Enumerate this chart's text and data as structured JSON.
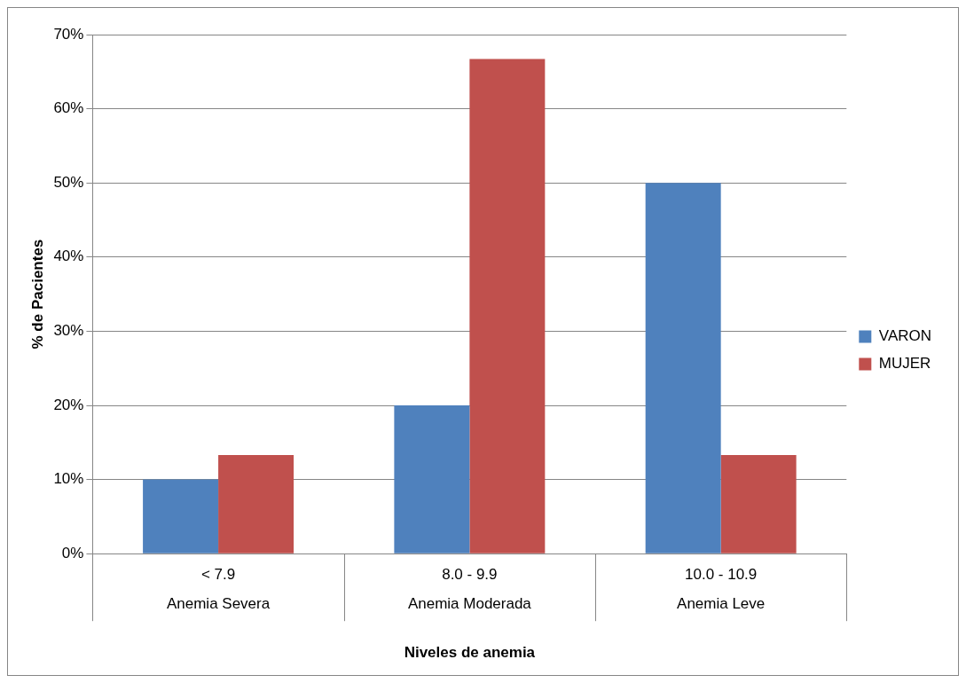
{
  "chart_data": {
    "type": "bar",
    "xlabel": "Niveles de anemia",
    "ylabel": "% de Pacientes",
    "categories": [
      "< 7.9",
      "8.0 - 9.9",
      "10.0 - 10.9"
    ],
    "annotations": [
      "Anemia Severa",
      "Anemia Moderada",
      "Anemia Leve"
    ],
    "series": [
      {
        "name": "VARON",
        "color": "#4f81bd",
        "values": [
          10,
          20,
          50
        ]
      },
      {
        "name": "MUJER",
        "color": "#c0504d",
        "values": [
          13.3,
          66.7,
          13.3
        ]
      }
    ],
    "ylim": [
      0,
      70
    ],
    "yticks": [
      {
        "value": 0,
        "label": "0%"
      },
      {
        "value": 10,
        "label": "10%"
      },
      {
        "value": 20,
        "label": "20%"
      },
      {
        "value": 30,
        "label": "30%"
      },
      {
        "value": 40,
        "label": "40%"
      },
      {
        "value": 50,
        "label": "50%"
      },
      {
        "value": 60,
        "label": "60%"
      },
      {
        "value": 70,
        "label": "70%"
      }
    ],
    "grid": "y",
    "legend": "right"
  }
}
